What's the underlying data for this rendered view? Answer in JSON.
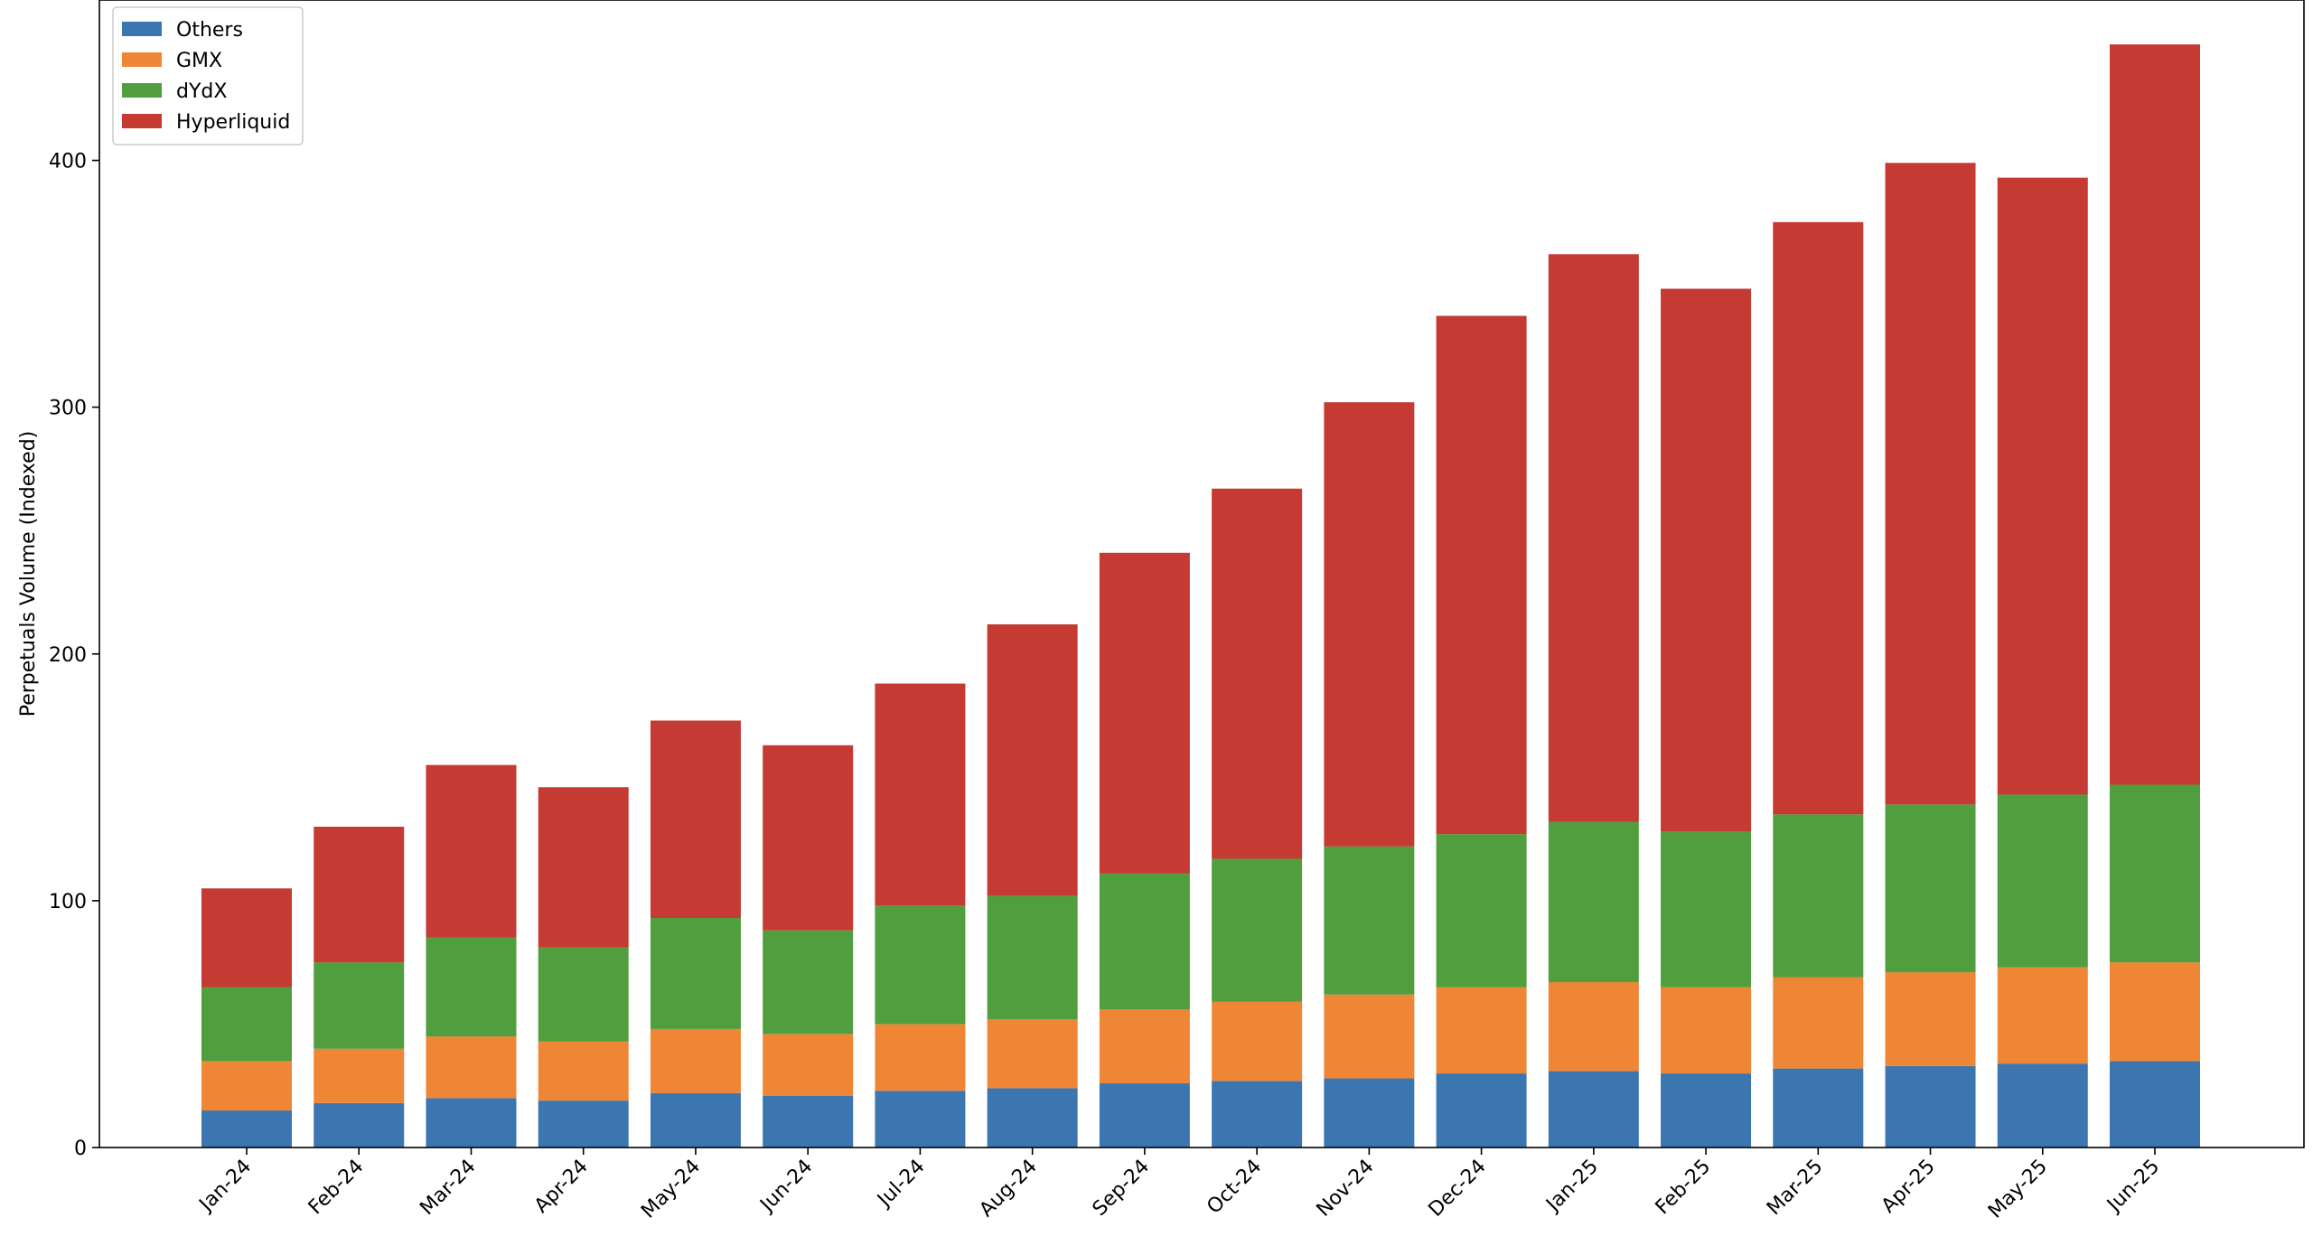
{
  "chart_data": {
    "type": "bar",
    "stacked": true,
    "title": "",
    "xlabel": "",
    "ylabel": "Perpetuals Volume (Indexed)",
    "ylim": [
      0,
      465
    ],
    "yticks": [
      0,
      100,
      200,
      300,
      400
    ],
    "grid": false,
    "legend_position": "top-left",
    "categories": [
      "Jan-24",
      "Feb-24",
      "Mar-24",
      "Apr-24",
      "May-24",
      "Jun-24",
      "Jul-24",
      "Aug-24",
      "Sep-24",
      "Oct-24",
      "Nov-24",
      "Dec-24",
      "Jan-25",
      "Feb-25",
      "Mar-25",
      "Apr-25",
      "May-25",
      "Jun-25"
    ],
    "series": [
      {
        "name": "Others",
        "color": "#3c76b1",
        "values": [
          15,
          18,
          20,
          19,
          22,
          21,
          23,
          24,
          26,
          27,
          28,
          30,
          31,
          30,
          32,
          33,
          34,
          35
        ]
      },
      {
        "name": "GMX",
        "color": "#ef8636",
        "values": [
          20,
          22,
          25,
          24,
          26,
          25,
          27,
          28,
          30,
          32,
          34,
          35,
          36,
          35,
          37,
          38,
          39,
          40
        ]
      },
      {
        "name": "dYdX",
        "color": "#519e3e",
        "values": [
          30,
          35,
          40,
          38,
          45,
          42,
          48,
          50,
          55,
          58,
          60,
          62,
          65,
          63,
          66,
          68,
          70,
          72
        ]
      },
      {
        "name": "Hyperliquid",
        "color": "#c53a32",
        "values": [
          40,
          55,
          70,
          65,
          80,
          75,
          90,
          110,
          130,
          150,
          180,
          210,
          230,
          220,
          240,
          260,
          250,
          300
        ]
      }
    ]
  }
}
